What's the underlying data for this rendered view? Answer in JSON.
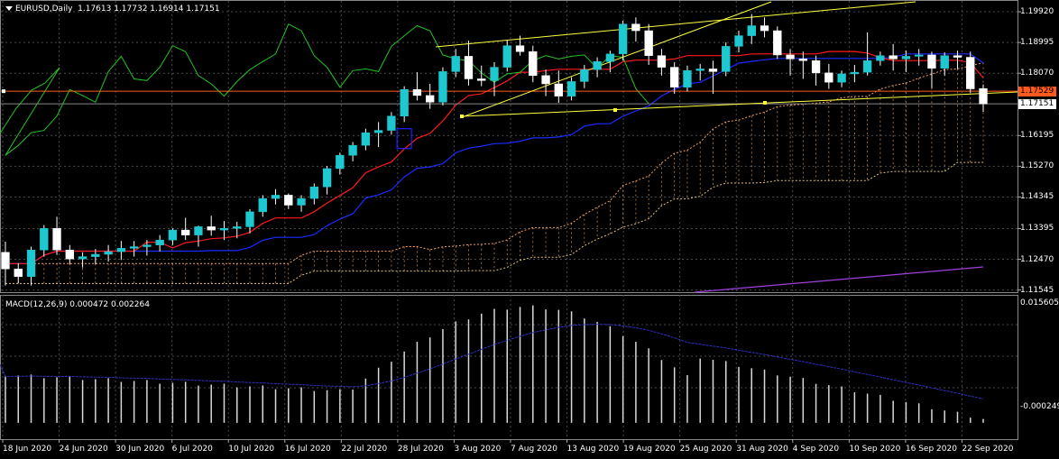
{
  "header": {
    "symbol": "EURUSD,Daily",
    "ohlc": "1.17613 1.17732 1.16914 1.17151"
  },
  "macd": {
    "label": "MACD(12,26,9) 0.000472 0.002264",
    "scale_top": "0.015605",
    "scale_bottom": "-0.000249"
  },
  "price_axis": {
    "ticks": [
      "1.19920",
      "1.18995",
      "1.18070",
      "1.16195",
      "1.15270",
      "1.14345",
      "1.13395",
      "1.12470",
      "1.11545"
    ],
    "current_bid_label": "1.17529",
    "current_close_label": "1.17151"
  },
  "time_axis": {
    "labels": [
      "18 Jun 2020",
      "24 Jun 2020",
      "30 Jun 2020",
      "6 Jul 2020",
      "10 Jul 2020",
      "16 Jul 2020",
      "22 Jul 2020",
      "28 Jul 2020",
      "3 Aug 2020",
      "7 Aug 2020",
      "13 Aug 2020",
      "19 Aug 2020",
      "25 Aug 2020",
      "31 Aug 2020",
      "4 Sep 2020",
      "10 Sep 2020",
      "16 Sep 2020",
      "22 Sep 2020"
    ]
  },
  "colors": {
    "background": "#000000",
    "grid": "#4a4a4a",
    "bull_candle": "#1ec8d0",
    "bear_candle": "#ffffff",
    "tenkan": "#ff1a1a",
    "kijun": "#1a2cff",
    "chikou": "#22c422",
    "senkou_a": "#f0a060",
    "senkou_b": "#e0c080",
    "trendline": "#ffff40",
    "horizontal_line": "#ff5a1e",
    "bid_tag": "#ff5a1e",
    "violet_line": "#a040e0",
    "macd_hist": "#d8d8d8",
    "macd_signal": "#3030c0"
  },
  "chart_data": {
    "type": "candlestick",
    "symbol": "EURUSD",
    "timeframe": "Daily",
    "price_range": [
      1.1148,
      1.2022
    ],
    "candles": [
      [
        1.1268,
        1.13,
        1.1168,
        1.1218
      ],
      [
        1.1218,
        1.1235,
        1.1175,
        1.1195
      ],
      [
        1.1195,
        1.1285,
        1.1168,
        1.1275
      ],
      [
        1.1275,
        1.135,
        1.1255,
        1.134
      ],
      [
        1.134,
        1.1375,
        1.126,
        1.1275
      ],
      [
        1.1275,
        1.129,
        1.1232,
        1.1248
      ],
      [
        1.1248,
        1.1268,
        1.1222,
        1.1255
      ],
      [
        1.1255,
        1.1278,
        1.1232,
        1.1262
      ],
      [
        1.1262,
        1.129,
        1.124,
        1.127
      ],
      [
        1.127,
        1.1302,
        1.1245,
        1.128
      ],
      [
        1.128,
        1.1302,
        1.1255,
        1.1285
      ],
      [
        1.1285,
        1.1305,
        1.1258,
        1.129
      ],
      [
        1.129,
        1.132,
        1.127,
        1.1305
      ],
      [
        1.1305,
        1.134,
        1.129,
        1.1335
      ],
      [
        1.1335,
        1.1372,
        1.1305,
        1.132
      ],
      [
        1.132,
        1.1348,
        1.1285,
        1.1345
      ],
      [
        1.1345,
        1.1378,
        1.1318,
        1.1335
      ],
      [
        1.1335,
        1.1362,
        1.1305,
        1.134
      ],
      [
        1.134,
        1.136,
        1.131,
        1.1345
      ],
      [
        1.1345,
        1.1398,
        1.1325,
        1.139
      ],
      [
        1.139,
        1.144,
        1.1375,
        1.143
      ],
      [
        1.143,
        1.1458,
        1.1412,
        1.144
      ],
      [
        1.144,
        1.1445,
        1.1398,
        1.141
      ],
      [
        1.141,
        1.144,
        1.139,
        1.143
      ],
      [
        1.143,
        1.1475,
        1.1412,
        1.1465
      ],
      [
        1.1465,
        1.1528,
        1.1442,
        1.152
      ],
      [
        1.152,
        1.1568,
        1.1502,
        1.156
      ],
      [
        1.156,
        1.16,
        1.1542,
        1.159
      ],
      [
        1.159,
        1.164,
        1.1575,
        1.1628
      ],
      [
        1.1628,
        1.166,
        1.1585,
        1.1635
      ],
      [
        1.1635,
        1.169,
        1.1622,
        1.1678
      ],
      [
        1.1678,
        1.1768,
        1.166,
        1.1758
      ],
      [
        1.1758,
        1.181,
        1.1725,
        1.174
      ],
      [
        1.174,
        1.1775,
        1.17,
        1.172
      ],
      [
        1.172,
        1.1825,
        1.171,
        1.1812
      ],
      [
        1.1812,
        1.188,
        1.1795,
        1.1858
      ],
      [
        1.1858,
        1.1905,
        1.177,
        1.179
      ],
      [
        1.179,
        1.183,
        1.1768,
        1.1785
      ],
      [
        1.1785,
        1.184,
        1.1738,
        1.1825
      ],
      [
        1.1825,
        1.1908,
        1.1812,
        1.189
      ],
      [
        1.189,
        1.192,
        1.186,
        1.1872
      ],
      [
        1.1872,
        1.189,
        1.178,
        1.18
      ],
      [
        1.18,
        1.1818,
        1.1738,
        1.1775
      ],
      [
        1.1775,
        1.1815,
        1.1718,
        1.1738
      ],
      [
        1.1738,
        1.1795,
        1.1725,
        1.1782
      ],
      [
        1.1782,
        1.1832,
        1.1762,
        1.1818
      ],
      [
        1.1818,
        1.1855,
        1.1795,
        1.1842
      ],
      [
        1.1842,
        1.1875,
        1.181,
        1.1865
      ],
      [
        1.1865,
        1.1965,
        1.1845,
        1.1955
      ],
      [
        1.1955,
        1.1975,
        1.1902,
        1.1935
      ],
      [
        1.1935,
        1.1955,
        1.1832,
        1.186
      ],
      [
        1.186,
        1.188,
        1.18,
        1.1825
      ],
      [
        1.1825,
        1.184,
        1.1745,
        1.1765
      ],
      [
        1.1765,
        1.183,
        1.1752,
        1.1815
      ],
      [
        1.1815,
        1.1835,
        1.1785,
        1.182
      ],
      [
        1.182,
        1.1845,
        1.1745,
        1.1812
      ],
      [
        1.1812,
        1.19,
        1.1798,
        1.1888
      ],
      [
        1.1888,
        1.1935,
        1.187,
        1.192
      ],
      [
        1.192,
        1.1985,
        1.1895,
        1.195
      ],
      [
        1.195,
        1.1975,
        1.1915,
        1.1935
      ],
      [
        1.1935,
        1.1948,
        1.185,
        1.1862
      ],
      [
        1.1862,
        1.188,
        1.18,
        1.185
      ],
      [
        1.185,
        1.1872,
        1.179,
        1.1845
      ],
      [
        1.1845,
        1.186,
        1.177,
        1.1808
      ],
      [
        1.1808,
        1.1835,
        1.176,
        1.178
      ],
      [
        1.178,
        1.1815,
        1.1765,
        1.1805
      ],
      [
        1.1805,
        1.1832,
        1.178,
        1.181
      ],
      [
        1.181,
        1.193,
        1.18,
        1.1845
      ],
      [
        1.1845,
        1.1872,
        1.183,
        1.186
      ],
      [
        1.186,
        1.1895,
        1.1815,
        1.185
      ],
      [
        1.185,
        1.1875,
        1.181,
        1.1858
      ],
      [
        1.1858,
        1.188,
        1.183,
        1.1862
      ],
      [
        1.1862,
        1.1872,
        1.1762,
        1.1822
      ],
      [
        1.1822,
        1.187,
        1.18,
        1.186
      ],
      [
        1.186,
        1.1875,
        1.182,
        1.1855
      ],
      [
        1.1855,
        1.1872,
        1.1748,
        1.176
      ],
      [
        1.1761,
        1.1773,
        1.1691,
        1.1715
      ]
    ],
    "macd_histogram_range": [
      -0.000249,
      0.015605
    ],
    "macd_current": 0.000472,
    "signal_current": 0.002264,
    "horizontal_line_level": 1.17529,
    "last_close": 1.17151
  }
}
